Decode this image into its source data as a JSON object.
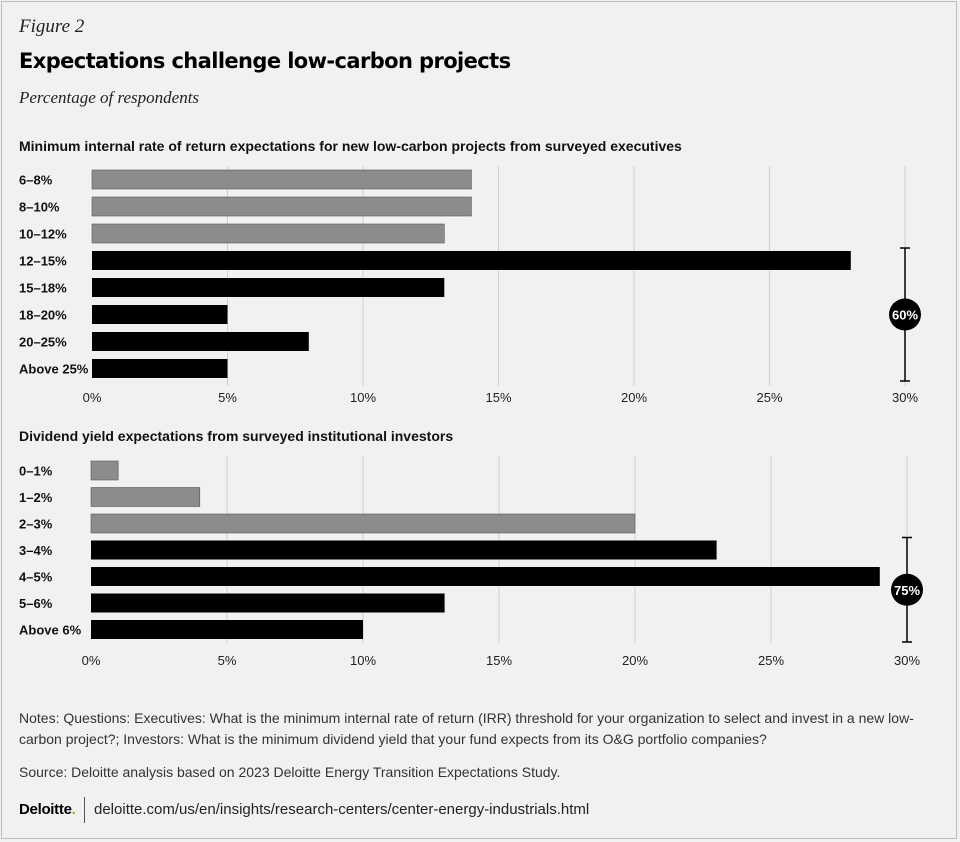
{
  "figure_label": "Figure 2",
  "title": "Expectations challenge low-carbon projects",
  "subtitle": "Percentage of respondents",
  "chart_data": [
    {
      "type": "bar",
      "orientation": "horizontal",
      "title": "Minimum internal rate of return expectations for new low-carbon projects from surveyed executives",
      "categories": [
        "6–8%",
        "8–10%",
        "10–12%",
        "12–15%",
        "15–18%",
        "18–20%",
        "20–25%",
        "Above 25%"
      ],
      "values": [
        14,
        14,
        13,
        28,
        13,
        5,
        8,
        5
      ],
      "highlighted": [
        false,
        false,
        false,
        true,
        true,
        true,
        true,
        true
      ],
      "xlim": [
        0,
        30
      ],
      "xticks": [
        "0%",
        "5%",
        "10%",
        "15%",
        "20%",
        "25%",
        "30%"
      ],
      "grid": true,
      "bracket_label": "60%",
      "bracket_span": [
        "12–15%",
        "Above 25%"
      ]
    },
    {
      "type": "bar",
      "orientation": "horizontal",
      "title": "Dividend yield expectations from surveyed institutional investors",
      "categories": [
        "0–1%",
        "1–2%",
        "2–3%",
        "3–4%",
        "4–5%",
        "5–6%",
        "Above 6%"
      ],
      "values": [
        1,
        4,
        20,
        23,
        29,
        13,
        10
      ],
      "highlighted": [
        false,
        false,
        false,
        true,
        true,
        true,
        true
      ],
      "xlim": [
        0,
        30
      ],
      "xticks": [
        "0%",
        "5%",
        "10%",
        "15%",
        "20%",
        "25%",
        "30%"
      ],
      "grid": true,
      "bracket_label": "75%",
      "bracket_span": [
        "3–4%",
        "Above 6%"
      ]
    }
  ],
  "notes": "Notes: Questions: Executives: What is the minimum internal rate of return (IRR) threshold for your organization to select and invest in a new low-carbon project?; Investors: What is the minimum dividend yield that your fund expects from its O&G portfolio companies?",
  "source": "Source: Deloitte analysis based on 2023 Deloitte Energy Transition Expectations Study.",
  "logo_text": "Deloitte",
  "logo_dot": ".",
  "url": "deloitte.com/us/en/insights/research-centers/center-energy-industrials.html",
  "colors": {
    "highlight_bar": "#000000",
    "muted_bar": "#8c8c8c",
    "background": "#f1f1f1",
    "grid": "#cfcfcf",
    "brand_dot": "#86bc25"
  }
}
